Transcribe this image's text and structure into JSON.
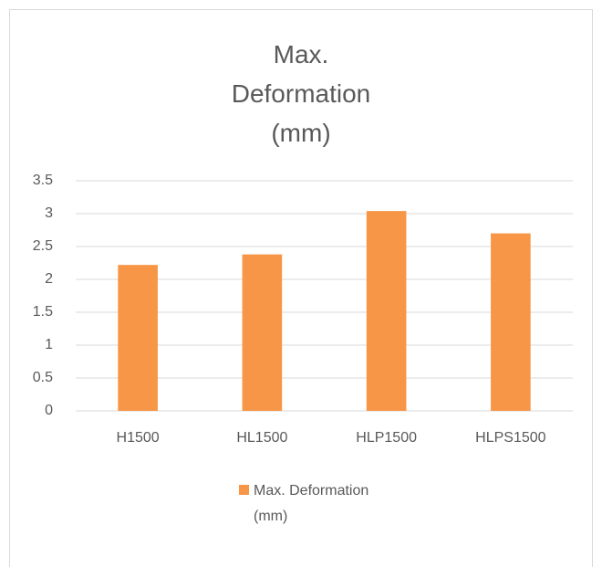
{
  "chart_data": {
    "type": "bar",
    "title": "Max. Deformation (mm)",
    "categories": [
      "H1500",
      "HL1500",
      "HLP1500",
      "HLPS1500"
    ],
    "series": [
      {
        "name": "Max. Deformation (mm)",
        "color": "#f79646",
        "values": [
          2.22,
          2.38,
          3.04,
          2.7
        ]
      }
    ],
    "ylim": [
      0,
      3.5
    ],
    "yticks": [
      0,
      0.5,
      1,
      1.5,
      2,
      2.5,
      3,
      3.5
    ],
    "grid": true,
    "legend": "bottom"
  }
}
